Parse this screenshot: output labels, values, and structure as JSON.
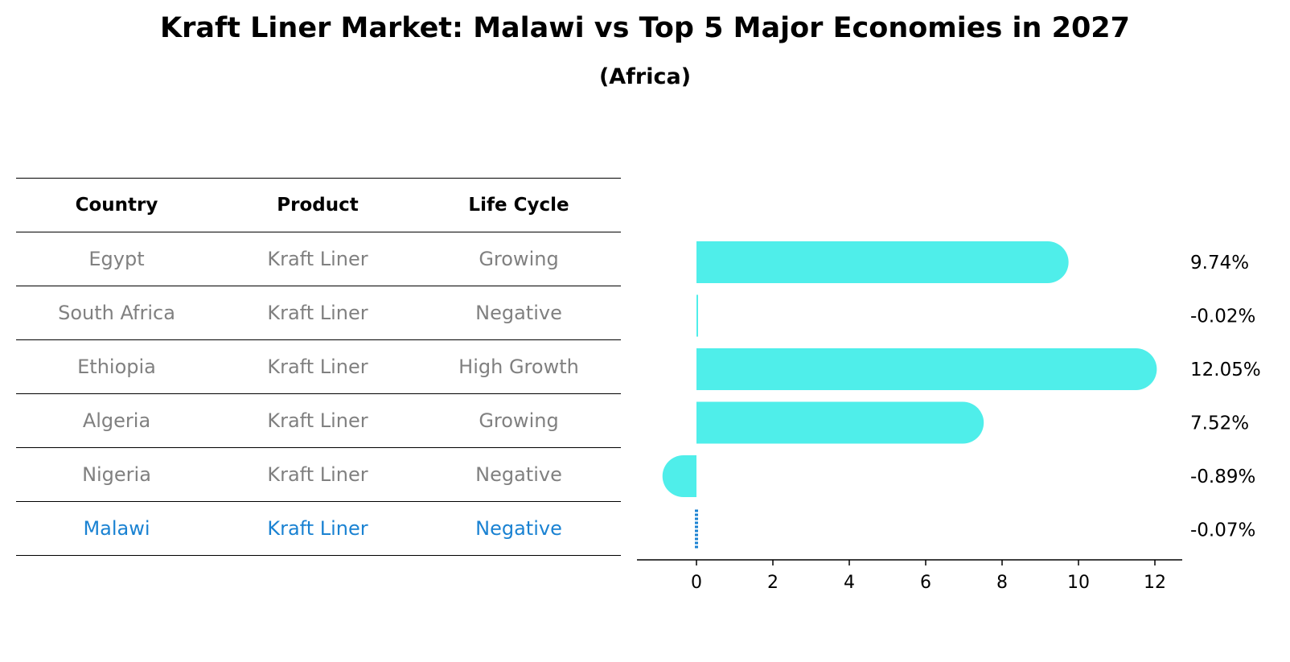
{
  "chart_data": {
    "type": "bar",
    "orientation": "horizontal",
    "title": "Kraft Liner Market: Malawi vs Top 5 Major Economies in 2027",
    "subtitle": "(Africa)",
    "categories": [
      "Egypt",
      "South Africa",
      "Ethiopia",
      "Algeria",
      "Nigeria",
      "Malawi"
    ],
    "values": [
      9.74,
      -0.02,
      12.05,
      7.52,
      -0.89,
      -0.07
    ],
    "value_labels": [
      "9.74%",
      "-0.02%",
      "12.05%",
      "7.52%",
      "-0.89%",
      "-0.07%"
    ],
    "highlight": "Malawi",
    "xlim": [
      -1.6,
      12.6
    ],
    "xticks": [
      0,
      2,
      4,
      6,
      8,
      10,
      12
    ],
    "xlabel": "",
    "ylabel": "",
    "grid": false,
    "colors": {
      "bar": "#4feeea",
      "highlight": "#1a82d2"
    }
  },
  "table": {
    "headers": [
      "Country",
      "Product",
      "Life Cycle"
    ],
    "rows": [
      [
        "Egypt",
        "Kraft Liner",
        "Growing"
      ],
      [
        "South Africa",
        "Kraft Liner",
        "Negative"
      ],
      [
        "Ethiopia",
        "Kraft Liner",
        "High Growth"
      ],
      [
        "Algeria",
        "Kraft Liner",
        "Growing"
      ],
      [
        "Nigeria",
        "Kraft Liner",
        "Negative"
      ],
      [
        "Malawi",
        "Kraft Liner",
        "Negative"
      ]
    ],
    "highlight_row": 5
  }
}
